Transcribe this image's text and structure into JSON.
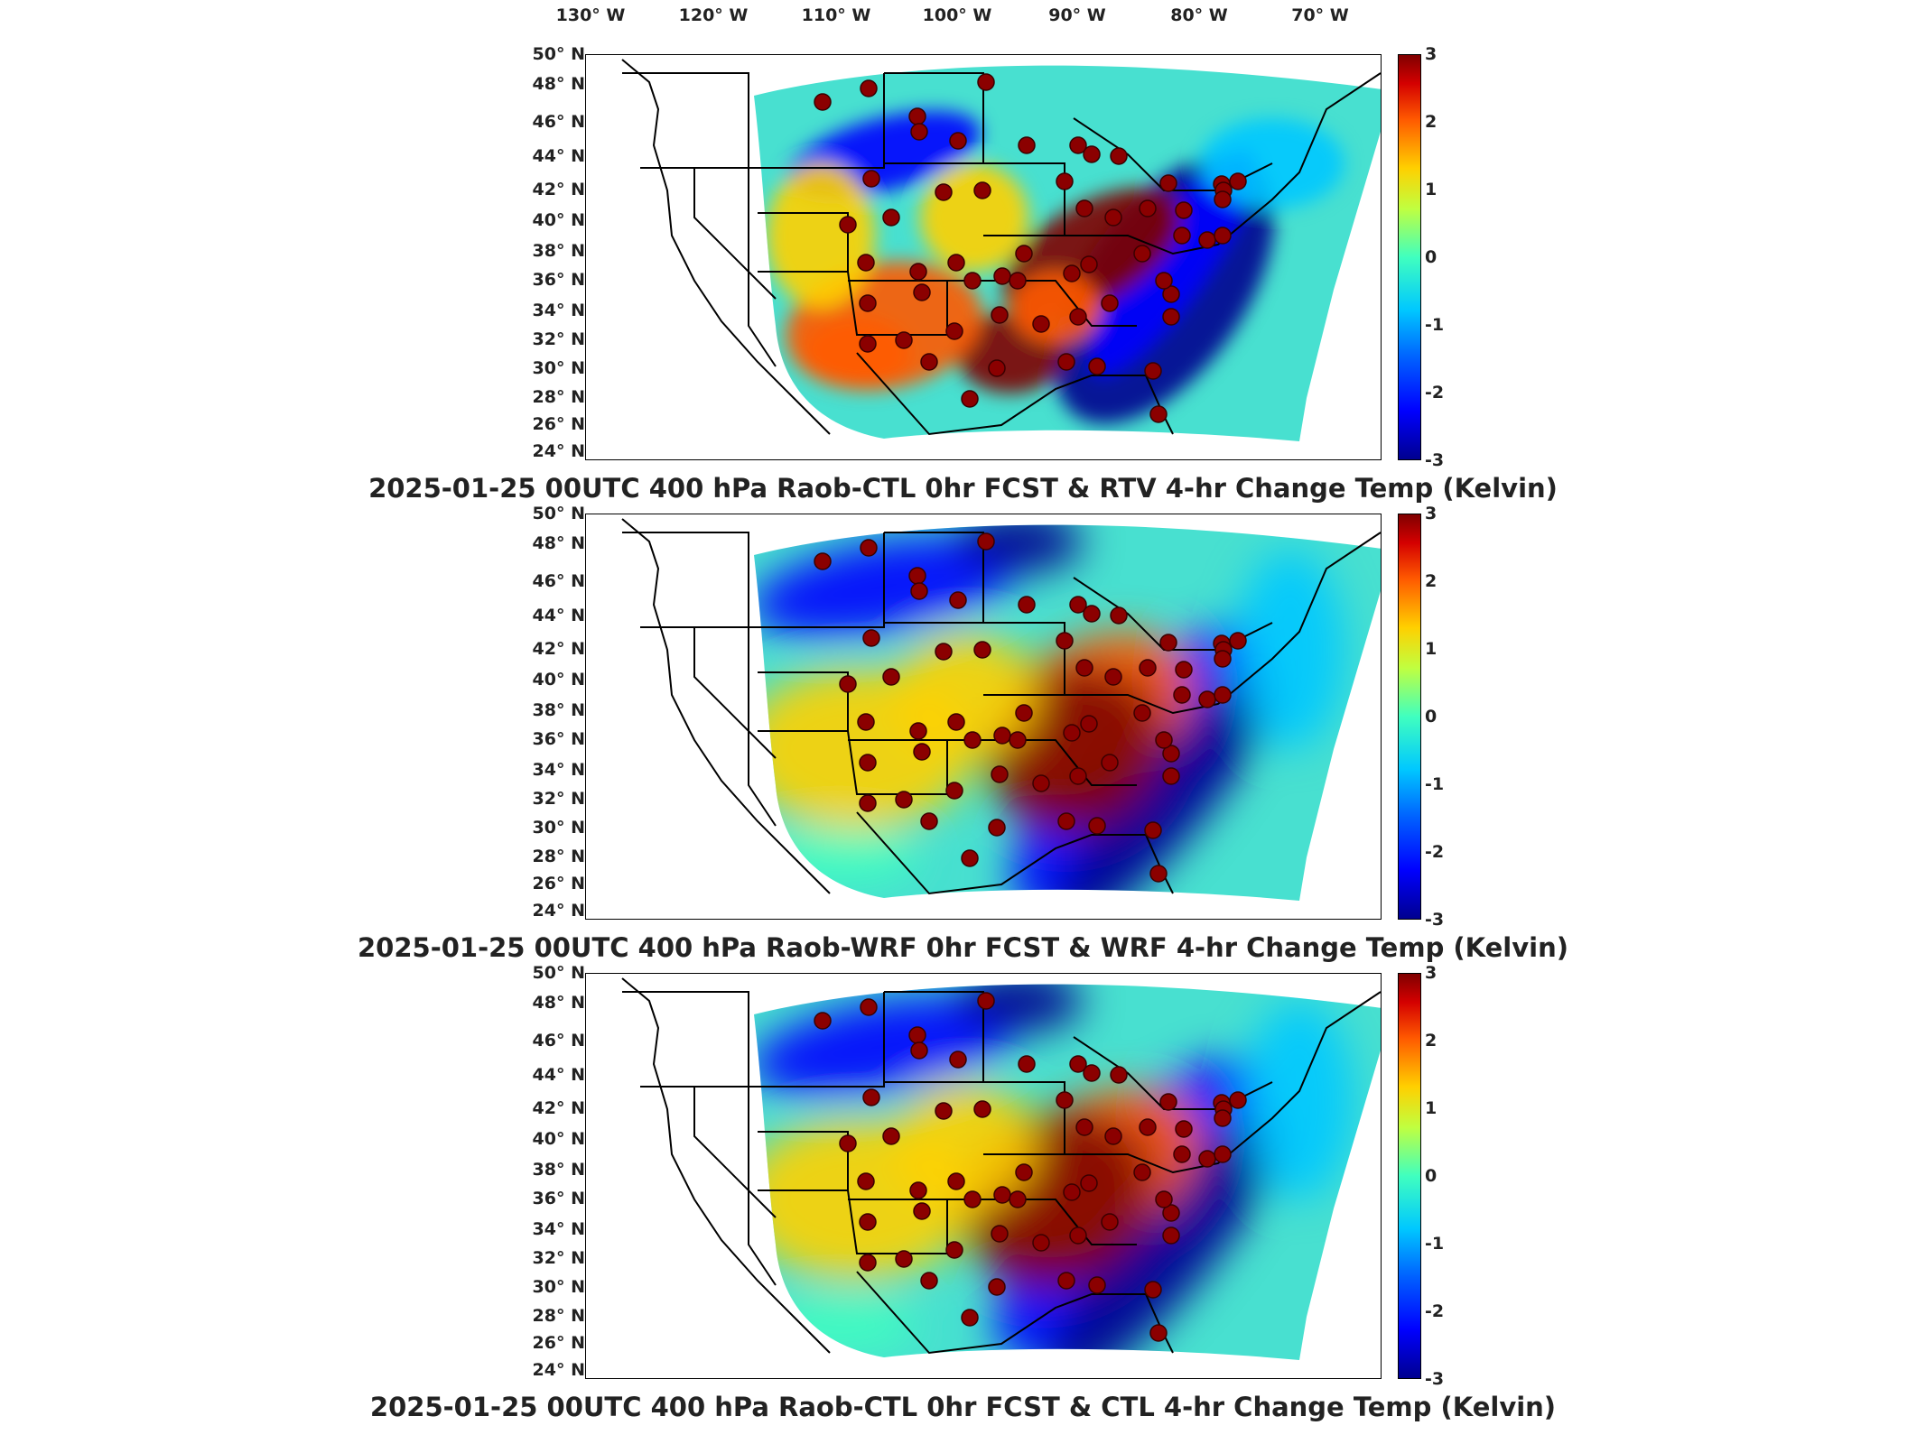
{
  "lon_labels": [
    "130° W",
    "120° W",
    "110° W",
    "100° W",
    "90° W",
    "80° W",
    "70° W"
  ],
  "lat_labels": [
    "50° N",
    "48° N",
    "46° N",
    "44° N",
    "42° N",
    "40° N",
    "38° N",
    "36° N",
    "34° N",
    "32° N",
    "30° N",
    "28° N",
    "26° N",
    "24° N"
  ],
  "colorbar": {
    "min": -3,
    "max": 3,
    "ticks": [
      "3",
      "2",
      "1",
      "0",
      "-1",
      "-2",
      "-3"
    ],
    "colors": [
      "#00008f",
      "#0000ff",
      "#00c8ff",
      "#40ffbf",
      "#ffd000",
      "#ff5a00",
      "#800000"
    ]
  },
  "station_color": "#8b0000",
  "panels": [
    {
      "title": "2025-01-25 00UTC 400 hPa Raob-CTL 0hr FCST & RTV 4-hr Change Temp (Kelvin)"
    },
    {
      "title": "2025-01-25 00UTC 400 hPa Raob-WRF 0hr FCST & WRF 4-hr Change Temp (Kelvin)"
    },
    {
      "title": "2025-01-25 00UTC 400 hPa Raob-CTL 0hr FCST & CTL 4-hr Change Temp (Kelvin)"
    }
  ]
}
